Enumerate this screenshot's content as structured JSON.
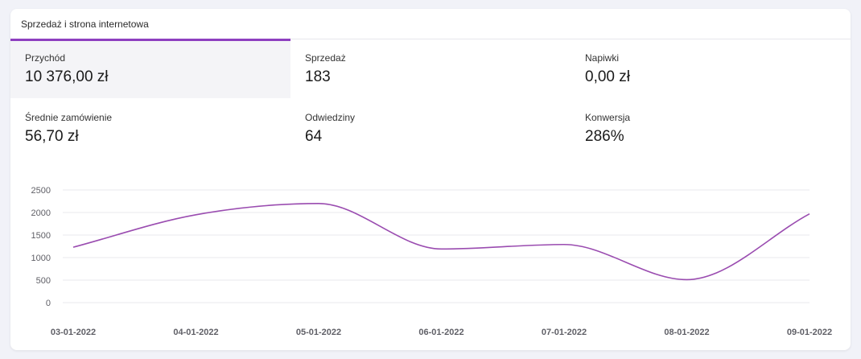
{
  "card": {
    "title": "Sprzedaż i strona internetowa"
  },
  "metrics": [
    {
      "label": "Przychód",
      "value": "10 376,00 zł",
      "active": true
    },
    {
      "label": "Sprzedaż",
      "value": "183"
    },
    {
      "label": "Napiwki",
      "value": "0,00 zł"
    },
    {
      "label": "Średnie zamówienie",
      "value": "56,70 zł"
    },
    {
      "label": "Odwiedziny",
      "value": "64"
    },
    {
      "label": "Konwersja",
      "value": "286%"
    }
  ],
  "colors": {
    "accent": "#8e3fc0",
    "line": "#9a4cb0"
  },
  "chart_data": {
    "type": "line",
    "x": [
      "03-01-2022",
      "04-01-2022",
      "05-01-2022",
      "06-01-2022",
      "07-01-2022",
      "08-01-2022",
      "09-01-2022"
    ],
    "series": [
      {
        "values": [
          1230,
          1950,
          2200,
          1190,
          1290,
          510,
          1970
        ]
      }
    ],
    "yticks": [
      "0",
      "500",
      "1000",
      "1500",
      "2000",
      "2500"
    ],
    "ylim": [
      0,
      2500
    ],
    "grid": true
  }
}
